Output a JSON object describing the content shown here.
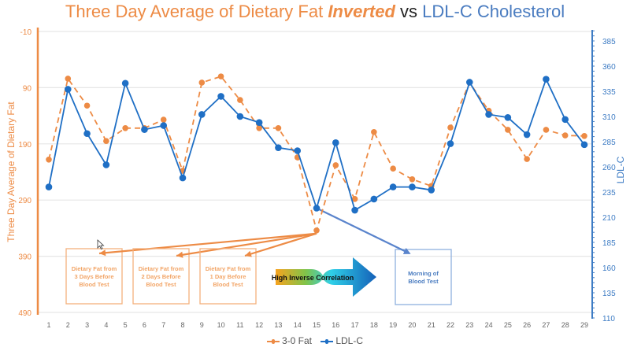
{
  "title": {
    "part1": "Three Day Average of Dietary Fat ",
    "part2": "Inverted",
    "part3": " vs ",
    "part4": "LDL-C Cholesterol"
  },
  "colors": {
    "fat": "#ED8B45",
    "ldl": "#1F6FC5",
    "left_axis": "#ED8B45",
    "right_axis": "#3E7CC4",
    "grid": "#E6E6E6",
    "arrow_blue": "#5A84CC"
  },
  "chart_data": {
    "type": "line",
    "title": "Three Day Average of Dietary Fat Inverted vs LDL-C Cholesterol",
    "xlabel": "",
    "x": [
      1,
      2,
      3,
      4,
      5,
      6,
      7,
      8,
      9,
      10,
      11,
      12,
      13,
      14,
      15,
      16,
      17,
      18,
      19,
      20,
      21,
      22,
      23,
      24,
      25,
      26,
      27,
      28,
      29
    ],
    "x_tick_labels": [
      "1",
      "2",
      "3",
      "4",
      "5",
      "6",
      "7",
      "8",
      "9",
      "10",
      "11",
      "12",
      "13",
      "14",
      "15",
      "16",
      "17",
      "18",
      "19",
      "20",
      "21",
      "22",
      "23",
      "24",
      "25",
      "26",
      "27",
      "28",
      "29"
    ],
    "y_left": {
      "label": "Three Day Average of Dietary Fat",
      "range": [
        -10,
        490
      ],
      "inverted": true,
      "ticks": [
        -10,
        90,
        190,
        290,
        390,
        490
      ],
      "tick_labels": [
        "-10",
        "90",
        "190",
        "290",
        "390",
        "490"
      ]
    },
    "y_right": {
      "label": "LDL-C",
      "range": [
        110,
        385
      ],
      "ticks": [
        110,
        135,
        160,
        185,
        210,
        235,
        260,
        285,
        310,
        335,
        360,
        385
      ],
      "tick_labels": [
        "110",
        "135",
        "160",
        "185",
        "210",
        "235",
        "260",
        "285",
        "310",
        "335",
        "360",
        "385"
      ]
    },
    "grid": true,
    "legend_position": "bottom",
    "series": [
      {
        "name": "3-0 Fat",
        "axis": "left",
        "style": "dashed",
        "values": [
          218,
          74,
          122,
          185,
          162,
          162,
          147,
          238,
          81,
          70,
          112,
          162,
          162,
          214,
          344,
          228,
          288,
          169,
          234,
          253,
          265,
          161,
          81,
          131,
          165,
          217,
          165,
          175,
          176
        ]
      },
      {
        "name": "LDL-C",
        "axis": "right",
        "style": "solid",
        "values": [
          240,
          337,
          293,
          262,
          343,
          297,
          301,
          249,
          312,
          330,
          310,
          304,
          279,
          276,
          219,
          284,
          217,
          228,
          240,
          240,
          237,
          283,
          344,
          312,
          309,
          292,
          347,
          307,
          282
        ]
      }
    ],
    "annotations": {
      "fat_boxes": [
        {
          "lines": [
            "Dietary Fat from",
            "3 Days Before",
            "Blood Test"
          ],
          "target_day": 3
        },
        {
          "lines": [
            "Dietary Fat from",
            "2 Days Before",
            "Blood Test"
          ],
          "target_day": 7
        },
        {
          "lines": [
            "Dietary Fat from",
            "1 Day Before",
            "Blood Test"
          ],
          "target_day": 10.5
        }
      ],
      "arrow_source_day": 15,
      "correlation_arrow_label": "High Inverse Correlation",
      "morning_box": {
        "lines": [
          "Morning of",
          "Blood Test"
        ]
      }
    }
  },
  "legend": [
    {
      "label": "3-0 Fat"
    },
    {
      "label": "LDL-C"
    }
  ]
}
